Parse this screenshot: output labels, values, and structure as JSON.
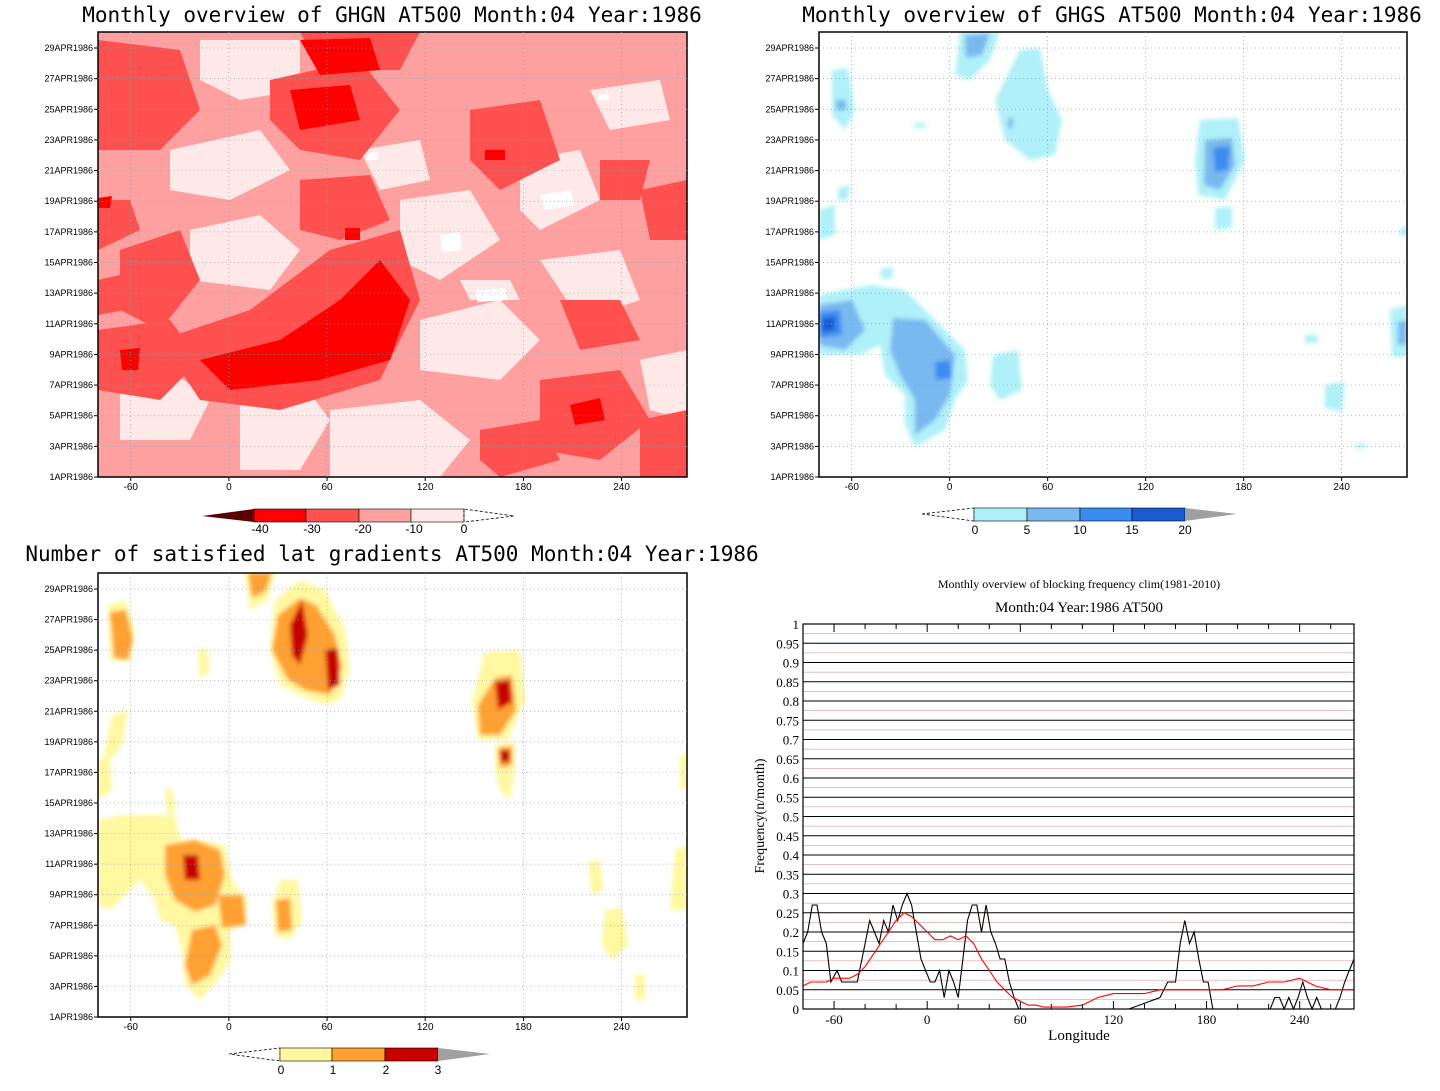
{
  "panels": {
    "ghgn": {
      "title": "Monthly overview of GHGN AT500 Month:04 Year:1986",
      "colorbar_labels": [
        "-40",
        "-30",
        "-20",
        "-10",
        "0"
      ],
      "colors": {
        "lt_m40": "#5a0000",
        "m40_m30": "#ff0000",
        "m30_m20": "#ff5050",
        "m20_m10": "#ffa0a0",
        "m10_0": "#ffe8e8"
      }
    },
    "ghgs": {
      "title": "Monthly overview of GHGS AT500 Month:04 Year:1986",
      "colorbar_labels": [
        "0",
        "5",
        "10",
        "15",
        "20"
      ],
      "colors": {
        "b0_5": "#b0f0f8",
        "b5_10": "#7ab8f0",
        "b10_15": "#3a8cf0",
        "b15_20": "#1a5cd0",
        "gt20": "#a0a0a0"
      }
    },
    "lat_grad": {
      "title": "Number of satisfied lat gradients AT500 Month:04 Year:1986",
      "colorbar_labels": [
        "0",
        "1",
        "2",
        "3"
      ],
      "colors": {
        "b0_1": "#fff8a0",
        "b1_2": "#ffa030",
        "b2_3": "#c80000",
        "gt3": "#a0a0a0"
      }
    }
  },
  "map_axes": {
    "y_ticks": [
      "29APR1986",
      "27APR1986",
      "25APR1986",
      "23APR1986",
      "21APR1986",
      "19APR1986",
      "17APR1986",
      "15APR1986",
      "13APR1986",
      "11APR1986",
      "9APR1986",
      "7APR1986",
      "5APR1986",
      "3APR1986",
      "1APR1986"
    ],
    "x_ticks": [
      "-60",
      "0",
      "60",
      "120",
      "180",
      "240"
    ]
  },
  "chart_data": {
    "type": "line",
    "title": "Monthly overview of blocking frequency clim(1981-2010)",
    "subtitle": "Month:04 Year:1986  AT500",
    "xlabel": "Longitude",
    "ylabel": "Frequency(n/month)",
    "xlim": [
      -80,
      275
    ],
    "ylim": [
      0,
      1
    ],
    "x_ticks": [
      "-60",
      "0",
      "60",
      "120",
      "180",
      "240"
    ],
    "y_ticks": [
      "0",
      "0.05",
      "0.1",
      "0.15",
      "0.2",
      "0.25",
      "0.3",
      "0.35",
      "0.4",
      "0.45",
      "0.5",
      "0.55",
      "0.6",
      "0.65",
      "0.7",
      "0.75",
      "0.8",
      "0.85",
      "0.9",
      "0.95",
      "1"
    ],
    "grid": true,
    "series": [
      {
        "color": "#000000",
        "x": [
          -80,
          -77,
          -74,
          -71,
          -68,
          -65,
          -62,
          -58,
          -55,
          -50,
          -45,
          -40,
          -37,
          -34,
          -31,
          -28,
          -25,
          -22,
          -19,
          -16,
          -13,
          -10,
          -7,
          -4,
          -1,
          2,
          5,
          8,
          11,
          14,
          17,
          20,
          23,
          26,
          29,
          32,
          35,
          38,
          41,
          44,
          47,
          50,
          53,
          56,
          59,
          62,
          65,
          68,
          75,
          90,
          110,
          130,
          150,
          155,
          160,
          163,
          166,
          169,
          172,
          175,
          178,
          181,
          184,
          190,
          200,
          210,
          215,
          218,
          221,
          224,
          227,
          230,
          233,
          236,
          239,
          242,
          245,
          248,
          251,
          254,
          257,
          260,
          263,
          266,
          269,
          272,
          275
        ],
        "y": [
          0.17,
          0.2,
          0.27,
          0.27,
          0.2,
          0.17,
          0.07,
          0.1,
          0.07,
          0.07,
          0.07,
          0.17,
          0.23,
          0.2,
          0.17,
          0.23,
          0.2,
          0.27,
          0.23,
          0.27,
          0.3,
          0.27,
          0.2,
          0.13,
          0.1,
          0.07,
          0.07,
          0.1,
          0.03,
          0.1,
          0.07,
          0.03,
          0.13,
          0.23,
          0.27,
          0.27,
          0.2,
          0.27,
          0.2,
          0.17,
          0.13,
          0.13,
          0.07,
          0.03,
          0,
          0,
          0,
          0,
          0,
          0,
          0,
          0,
          0.03,
          0.07,
          0.07,
          0.17,
          0.23,
          0.17,
          0.2,
          0.13,
          0.07,
          0.07,
          0,
          0,
          0,
          0,
          0,
          0,
          0,
          0.03,
          0.03,
          0,
          0.03,
          0,
          0.03,
          0.07,
          0.03,
          0,
          0.03,
          0,
          0,
          0,
          0,
          0.03,
          0.07,
          0.1,
          0.13
        ]
      },
      {
        "color": "#ff0000",
        "x": [
          -80,
          -75,
          -70,
          -65,
          -60,
          -55,
          -50,
          -45,
          -40,
          -35,
          -30,
          -25,
          -20,
          -15,
          -10,
          -5,
          0,
          5,
          10,
          15,
          20,
          25,
          30,
          35,
          40,
          45,
          50,
          55,
          60,
          65,
          70,
          75,
          80,
          90,
          100,
          110,
          120,
          130,
          140,
          150,
          160,
          170,
          180,
          190,
          200,
          210,
          220,
          230,
          240,
          250,
          260,
          270,
          275
        ],
        "y": [
          0.06,
          0.07,
          0.07,
          0.07,
          0.08,
          0.08,
          0.08,
          0.09,
          0.11,
          0.14,
          0.17,
          0.2,
          0.23,
          0.25,
          0.24,
          0.22,
          0.2,
          0.18,
          0.18,
          0.19,
          0.18,
          0.19,
          0.17,
          0.13,
          0.1,
          0.07,
          0.05,
          0.03,
          0.02,
          0.01,
          0.01,
          0.005,
          0.005,
          0.005,
          0.01,
          0.03,
          0.04,
          0.04,
          0.04,
          0.05,
          0.05,
          0.05,
          0.05,
          0.05,
          0.06,
          0.06,
          0.07,
          0.07,
          0.08,
          0.06,
          0.05,
          0.05,
          0.05
        ]
      }
    ]
  }
}
